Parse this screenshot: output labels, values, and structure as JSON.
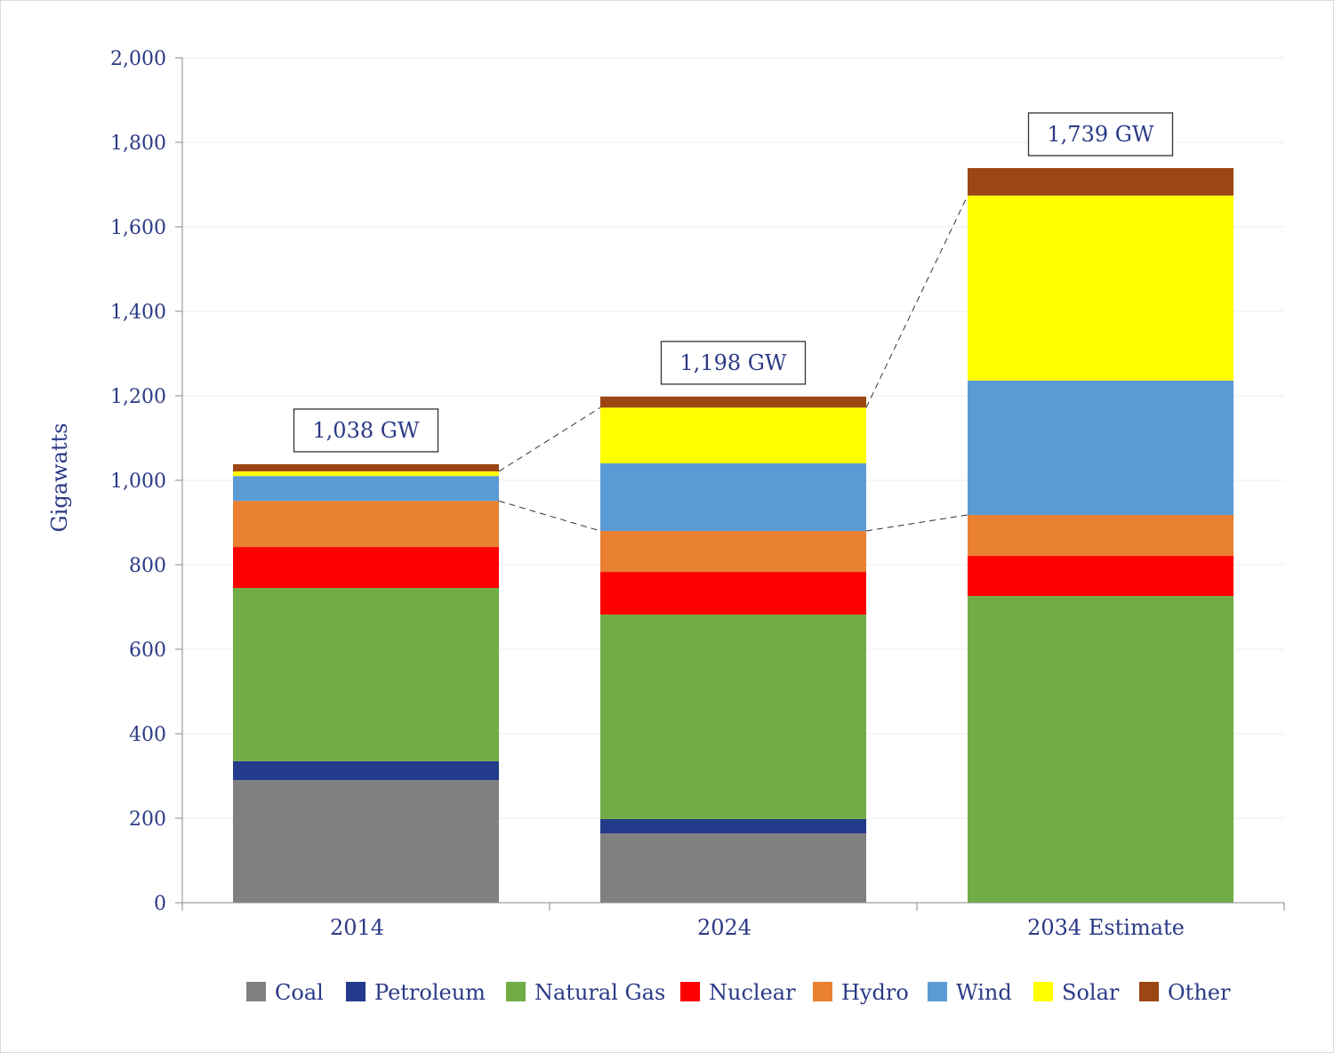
{
  "chart_data": {
    "type": "bar",
    "stacked": true,
    "title": "",
    "xlabel": "",
    "ylabel": "Gigawatts",
    "ylim": [
      0,
      2000
    ],
    "yticks": [
      "0",
      "200",
      "400",
      "600",
      "800",
      "1,000",
      "1,200",
      "1,400",
      "1,600",
      "1,800",
      "2,000"
    ],
    "ytick_values": [
      0,
      200,
      400,
      600,
      800,
      1000,
      1200,
      1400,
      1600,
      1800,
      2000
    ],
    "grid": true,
    "legend_position": "bottom",
    "categories": [
      "2014",
      "2024",
      "2034 Estimate"
    ],
    "totals_labels": [
      "1,038 GW",
      "1,198 GW",
      "1,739 GW"
    ],
    "series": [
      {
        "name": "Coal",
        "color": "#808080",
        "values": [
          290,
          164,
          0
        ]
      },
      {
        "name": "Petroleum",
        "color": "#233b8b",
        "values": [
          45,
          34,
          0
        ]
      },
      {
        "name": "Natural Gas",
        "color": "#70ad47",
        "values": [
          410,
          484,
          726
        ]
      },
      {
        "name": "Nuclear",
        "color": "#ff0000",
        "values": [
          97,
          101,
          95
        ]
      },
      {
        "name": "Hydro",
        "color": "#e98130",
        "values": [
          109,
          97,
          97
        ]
      },
      {
        "name": "Wind",
        "color": "#5b9bd5",
        "values": [
          59,
          160,
          318
        ]
      },
      {
        "name": "Solar",
        "color": "#ffff00",
        "values": [
          11,
          132,
          438
        ]
      },
      {
        "name": "Other",
        "color": "#9c4713",
        "values": [
          17,
          26,
          65
        ]
      }
    ]
  }
}
